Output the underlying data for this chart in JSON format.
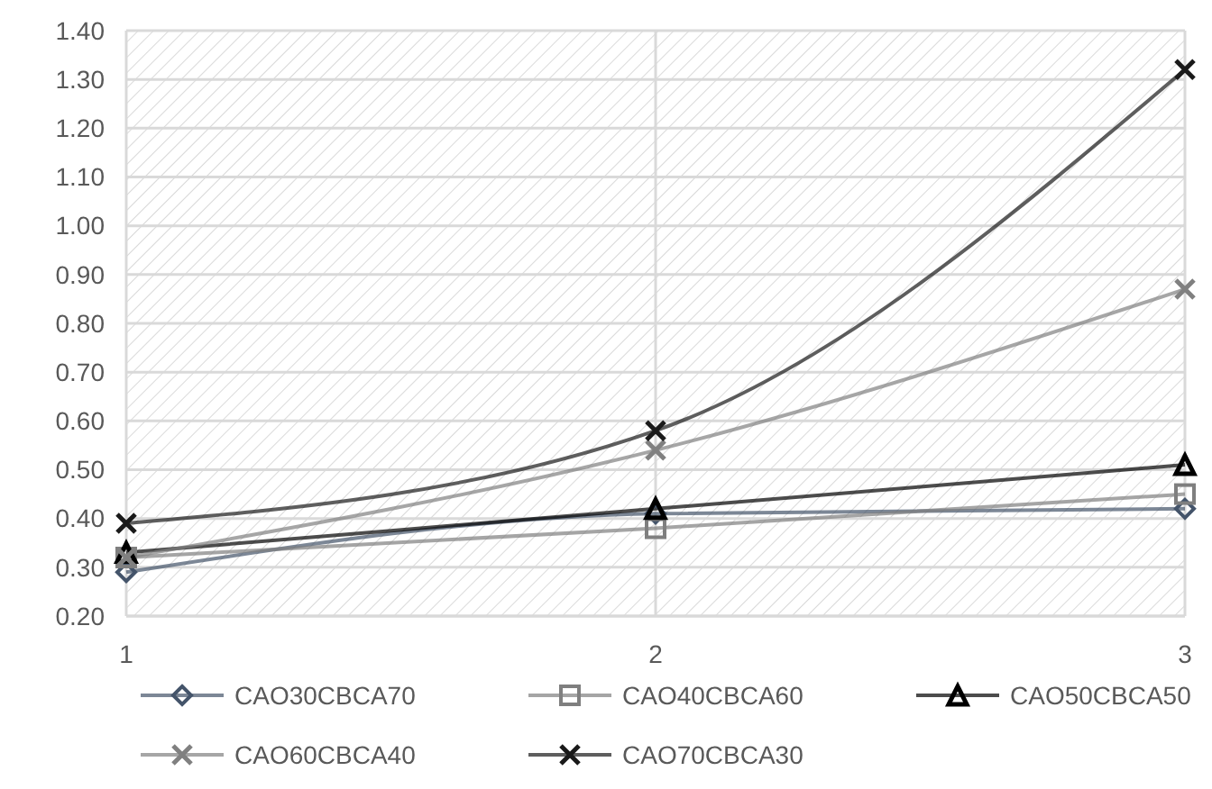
{
  "chart_data": {
    "type": "line",
    "x": [
      1,
      2,
      3
    ],
    "xlim": [
      1,
      3
    ],
    "xticks": [
      1,
      2,
      3
    ],
    "ylim": [
      0.2,
      1.4
    ],
    "yticks": [
      {
        "value": 0.2,
        "label": "0.20"
      },
      {
        "value": 0.3,
        "label": "0.30"
      },
      {
        "value": 0.4,
        "label": "0.40"
      },
      {
        "value": 0.5,
        "label": "0.50"
      },
      {
        "value": 0.6,
        "label": "0.60"
      },
      {
        "value": 0.7,
        "label": "0.70"
      },
      {
        "value": 0.8,
        "label": "0.80"
      },
      {
        "value": 0.9,
        "label": "0.90"
      },
      {
        "value": 1.0,
        "label": "1.00"
      },
      {
        "value": 1.1,
        "label": "1.10"
      },
      {
        "value": 1.2,
        "label": "1.20"
      },
      {
        "value": 1.3,
        "label": "1.30"
      },
      {
        "value": 1.4,
        "label": "1.40"
      }
    ],
    "grid": true,
    "legend": "bottom",
    "series": [
      {
        "name": "CAO30CBCA70",
        "color": "#44546a",
        "marker": "diamond",
        "values": [
          0.29,
          0.41,
          0.42
        ]
      },
      {
        "name": "CAO40CBCA60",
        "color": "#7f7f7f",
        "marker": "square",
        "values": [
          0.32,
          0.38,
          0.45
        ]
      },
      {
        "name": "CAO50CBCA50",
        "color": "#000000",
        "marker": "triangle",
        "values": [
          0.33,
          0.42,
          0.51
        ]
      },
      {
        "name": "CAO60CBCA40",
        "color": "#808080",
        "marker": "cross",
        "values": [
          0.32,
          0.54,
          0.87
        ]
      },
      {
        "name": "CAO70CBCA30",
        "color": "#1a1a1a",
        "marker": "cross",
        "values": [
          0.39,
          0.58,
          1.32
        ]
      }
    ]
  }
}
